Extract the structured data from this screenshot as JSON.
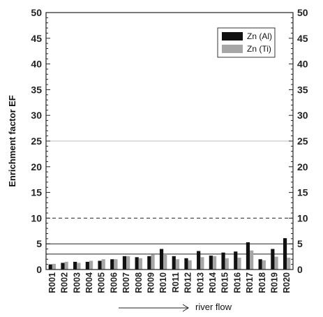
{
  "chart_data": {
    "type": "bar",
    "ylabel": "Enrichment factor EF",
    "ylim": [
      0,
      50
    ],
    "yticks": [
      0,
      5,
      10,
      15,
      20,
      25,
      30,
      35,
      40,
      45,
      50
    ],
    "categories": [
      "R001",
      "R002",
      "R003",
      "R004",
      "R005",
      "R006",
      "R007",
      "R008",
      "R009",
      "R010",
      "R011",
      "R012",
      "R013",
      "R014",
      "R015",
      "R016",
      "R017",
      "R018",
      "R019",
      "R020"
    ],
    "series": [
      {
        "name": "Zn (Al)",
        "color": "#111111",
        "values": [
          1.0,
          1.3,
          1.5,
          1.5,
          1.7,
          2.0,
          2.6,
          2.4,
          2.6,
          4.0,
          2.6,
          2.2,
          3.6,
          2.7,
          3.3,
          3.5,
          5.3,
          2.0,
          4.0,
          6.1
        ]
      },
      {
        "name": "Zn (Ti)",
        "color": "#a6a6a6",
        "values": [
          1.1,
          1.5,
          1.3,
          1.7,
          2.0,
          2.0,
          2.6,
          2.2,
          2.9,
          3.0,
          2.0,
          1.8,
          2.4,
          2.6,
          2.2,
          2.3,
          3.7,
          1.8,
          2.5,
          2.3
        ]
      }
    ],
    "reference_lines": [
      {
        "y": 25,
        "style": "solid",
        "color": "#bdbdbd"
      },
      {
        "y": 10,
        "style": "dashed",
        "color": "#222222"
      },
      {
        "y": 5,
        "style": "solid",
        "color": "#222222"
      },
      {
        "y": 3,
        "style": "solid",
        "color": "#222222"
      }
    ],
    "legend_position": "top-right",
    "flow_label": "river flow"
  }
}
